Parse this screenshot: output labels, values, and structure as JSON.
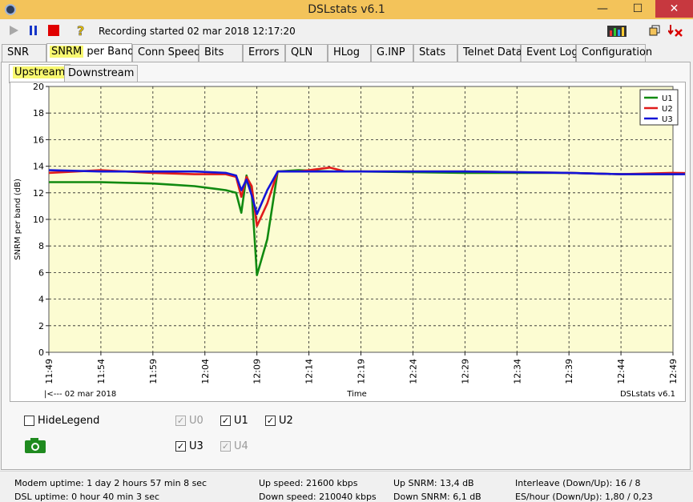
{
  "window": {
    "title": "DSLstats v6.1",
    "minimize": "—",
    "maximize": "☐",
    "close": "✕"
  },
  "toolbar": {
    "recording_text": "Recording started 02 mar 2018 12:17:20"
  },
  "tabs": [
    "SNR",
    "SNRM per Band",
    "Conn Speed",
    "Bits",
    "Errors",
    "QLN",
    "HLog",
    "G.INP",
    "Stats",
    "Telnet Data",
    "Event Log",
    "Configuration"
  ],
  "subtabs": [
    "Upstream",
    "Downstream"
  ],
  "chart_data": {
    "type": "line",
    "ylabel": "SNRM per band (dB)",
    "xlabel": "Time",
    "ylim": [
      0,
      20
    ],
    "yticks": [
      0,
      2,
      4,
      6,
      8,
      10,
      12,
      14,
      16,
      18,
      20
    ],
    "xticks": [
      "11:49",
      "11:54",
      "11:59",
      "12:04",
      "12:09",
      "12:14",
      "12:19",
      "12:24",
      "12:29",
      "12:34",
      "12:39",
      "12:44",
      "12:49"
    ],
    "grid": true,
    "legend_placement": "top-right",
    "corner_left": "|<--- 02 mar 2018",
    "corner_right": "DSLstats v6.1",
    "series": [
      {
        "name": "U1",
        "color": "#118a11",
        "x": [
          0,
          5,
          10,
          12,
          14,
          16,
          17,
          18,
          18.5,
          19,
          19.5,
          20,
          21,
          22,
          24,
          27,
          30,
          40,
          50,
          55,
          60,
          68,
          70,
          72,
          73,
          76,
          80
        ],
        "y": [
          12.8,
          12.8,
          12.7,
          12.6,
          12.5,
          12.3,
          12.2,
          12.0,
          10.5,
          13.3,
          12.0,
          5.8,
          8.5,
          13.6,
          13.7,
          13.6,
          13.6,
          13.5,
          13.5,
          13.4,
          13.4,
          13.5,
          13.5,
          13.4,
          13.3,
          13.3,
          13.3
        ]
      },
      {
        "name": "U2",
        "color": "#e01b1b",
        "x": [
          0,
          5,
          10,
          14,
          17,
          18,
          18.5,
          19,
          19.5,
          20,
          21,
          22,
          24,
          27,
          28.5,
          30,
          40,
          50,
          55,
          60,
          68,
          69,
          71,
          72,
          73,
          76,
          80
        ],
        "y": [
          13.5,
          13.7,
          13.5,
          13.4,
          13.4,
          13.2,
          11.7,
          13.2,
          12.5,
          9.5,
          11.2,
          13.6,
          13.6,
          13.9,
          13.6,
          13.6,
          13.6,
          13.5,
          13.4,
          13.5,
          13.4,
          13.7,
          13.7,
          13.3,
          13.4,
          13.3,
          13.3
        ]
      },
      {
        "name": "U3",
        "color": "#1414d8",
        "x": [
          0,
          5,
          10,
          14,
          17,
          18,
          18.5,
          19,
          19.5,
          20,
          21,
          22,
          24,
          27,
          30,
          40,
          50,
          55,
          60,
          68,
          72,
          73,
          76,
          80
        ],
        "y": [
          13.7,
          13.6,
          13.6,
          13.6,
          13.5,
          13.3,
          12.2,
          13.0,
          11.8,
          10.4,
          12.2,
          13.6,
          13.6,
          13.6,
          13.6,
          13.6,
          13.5,
          13.4,
          13.4,
          13.4,
          13.4,
          13.3,
          13.3,
          13.3
        ]
      }
    ]
  },
  "legend_controls": {
    "hide_legend": "HideLegend",
    "u0": "U0",
    "u1": "U1",
    "u2": "U2",
    "u3": "U3",
    "u4": "U4",
    "check": "✓"
  },
  "status": {
    "modem_uptime": "Modem uptime: 1 day 2 hours 57 min 8 sec",
    "dsl_uptime": "DSL uptime:  0 hour 40 min 3 sec",
    "up_speed": "Up speed: 21600 kbps",
    "down_speed": "Down speed: 210040 kbps",
    "up_snrm": "Up SNRM: 13,4 dB",
    "down_snrm": "Down SNRM: 6,1 dB",
    "interleave": "Interleave (Down/Up): 16 / 8",
    "es_hour": "ES/hour (Down/Up): 1,80 / 0,23"
  }
}
